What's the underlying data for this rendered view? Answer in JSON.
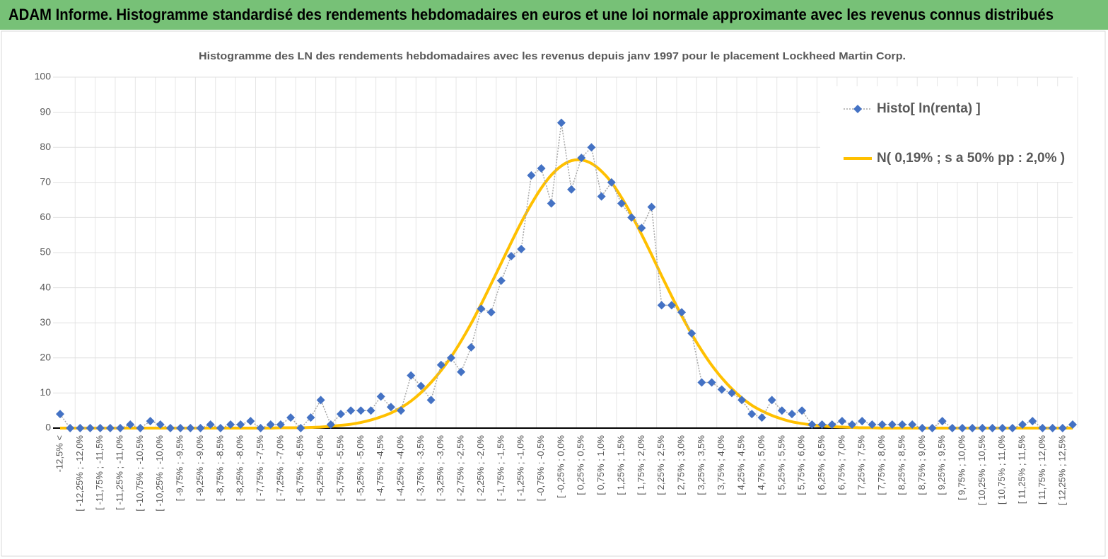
{
  "header": {
    "title": "ADAM Informe. Histogramme standardisé des rendements hebdomadaires en euros et une loi normale approximante avec les revenus connus distribués"
  },
  "chart_data": {
    "type": "line",
    "title": "Histogramme  des LN des rendements  hebdomadaires avec les revenus depuis janv 1997 pour le placement Lockheed Martin Corp.",
    "categories": [
      "-12,5% <",
      null,
      "[ -12,25% ; -12,0%",
      null,
      "[ -11,75% ; -11,5%",
      null,
      "[ -11,25% ; -11,0%",
      null,
      "[ -10,75% ; -10,5%",
      null,
      "[ -10,25% ; -10,0%",
      null,
      "[ -9,75% ; -9,5%",
      null,
      "[ -9,25% ; -9,0%",
      null,
      "[ -8,75% ; -8,5%",
      null,
      "[ -8,25% ; -8,0%",
      null,
      "[ -7,75% ; -7,5%",
      null,
      "[ -7,25% ; -7,0%",
      null,
      "[ -6,75% ; -6,5%",
      null,
      "[ -6,25% ; -6,0%",
      null,
      "[ -5,75% ; -5,5%",
      null,
      "[ -5,25% ; -5,0%",
      null,
      "[ -4,75% ; -4,5%",
      null,
      "[ -4,25% ; -4,0%",
      null,
      "[ -3,75% ; -3,5%",
      null,
      "[ -3,25% ; -3,0%",
      null,
      "[ -2,75% ; -2,5%",
      null,
      "[ -2,25% ; -2,0%",
      null,
      "[ -1,75% ; -1,5%",
      null,
      "[ -1,25% ; -1,0%",
      null,
      "[ -0,75% ; -0,5%",
      null,
      "[ -0,25% ; 0,0%",
      null,
      "[ 0,25% ; 0,5%",
      null,
      "[ 0,75% ; 1,0%",
      null,
      "[ 1,25% ; 1,5%",
      null,
      "[ 1,75% ; 2,0%",
      null,
      "[ 2,25% ; 2,5%",
      null,
      "[ 2,75% ; 3,0%",
      null,
      "[ 3,25% ; 3,5%",
      null,
      "[ 3,75% ; 4,0%",
      null,
      "[ 4,25% ; 4,5%",
      null,
      "[ 4,75% ; 5,0%",
      null,
      "[ 5,25% ; 5,5%",
      null,
      "[ 5,75% ; 6,0%",
      null,
      "[ 6,25% ; 6,5%",
      null,
      "[ 6,75% ; 7,0%",
      null,
      "[ 7,25% ; 7,5%",
      null,
      "[ 7,75% ; 8,0%",
      null,
      "[ 8,25% ; 8,5%",
      null,
      "[ 8,75% ; 9,0%",
      null,
      "[ 9,25% ; 9,5%",
      null,
      "[ 9,75% ; 10,0%",
      null,
      "[ 10,25% ; 10,5%",
      null,
      "[ 10,75% ; 11,0%",
      null,
      "[ 11,25% ; 11,5%",
      null,
      "[ 11,75% ; 12,0%",
      null,
      "[ 12,25% ; 12,5%",
      null
    ],
    "series": [
      {
        "name": "Histo[ ln(renta) ]",
        "color": "#4472c4",
        "marker": "diamond",
        "line_color": "#a6a6a6",
        "values": [
          4,
          0,
          0,
          0,
          0,
          0,
          0,
          1,
          0,
          2,
          1,
          0,
          0,
          0,
          0,
          1,
          0,
          1,
          1,
          2,
          0,
          1,
          1,
          3,
          0,
          3,
          8,
          1,
          4,
          5,
          5,
          5,
          9,
          6,
          5,
          15,
          12,
          8,
          18,
          20,
          16,
          23,
          34,
          33,
          42,
          49,
          51,
          72,
          74,
          64,
          87,
          68,
          77,
          80,
          66,
          70,
          64,
          60,
          57,
          63,
          35,
          35,
          33,
          27,
          13,
          13,
          11,
          10,
          8,
          4,
          3,
          8,
          5,
          4,
          5,
          1,
          1,
          1,
          2,
          1,
          2,
          1,
          1,
          1,
          1,
          1,
          0,
          0,
          2,
          0,
          0,
          0,
          0,
          0,
          0,
          0,
          1,
          2,
          0,
          0,
          0,
          1
        ]
      },
      {
        "name": "N( 0,19% ; s a 50% pp : 2,0% )",
        "color": "#ffc000",
        "marker": "none",
        "values": [
          0,
          0,
          0,
          0,
          0,
          0,
          0,
          0,
          0,
          0,
          0,
          0,
          0,
          0,
          0,
          0,
          0,
          0,
          0,
          0,
          0,
          0,
          0.1,
          0.1,
          0.1,
          0.2,
          0.3,
          0.5,
          0.8,
          1.1,
          1.6,
          2.3,
          3.2,
          4.3,
          5.8,
          7.7,
          10.1,
          13.0,
          16.4,
          20.3,
          24.8,
          29.8,
          35.3,
          41.1,
          47.0,
          52.9,
          58.6,
          63.8,
          68.4,
          72.1,
          74.7,
          76.2,
          76.4,
          75.4,
          73.2,
          70.0,
          65.7,
          60.7,
          55.2,
          49.4,
          43.4,
          37.6,
          32.0,
          26.8,
          22.1,
          17.9,
          14.3,
          11.2,
          8.6,
          6.5,
          4.9,
          3.6,
          2.6,
          1.8,
          1.3,
          0.9,
          0.6,
          0.4,
          0.3,
          0.2,
          0.1,
          0.1,
          0,
          0,
          0,
          0,
          0,
          0,
          0,
          0,
          0,
          0,
          0,
          0,
          0,
          0,
          0,
          0,
          0,
          0,
          0,
          0
        ]
      }
    ],
    "ylim": [
      0,
      100
    ],
    "yticks": [
      0,
      10,
      20,
      30,
      40,
      50,
      60,
      70,
      80,
      90,
      100
    ],
    "grid": true,
    "legend": "top-right"
  }
}
